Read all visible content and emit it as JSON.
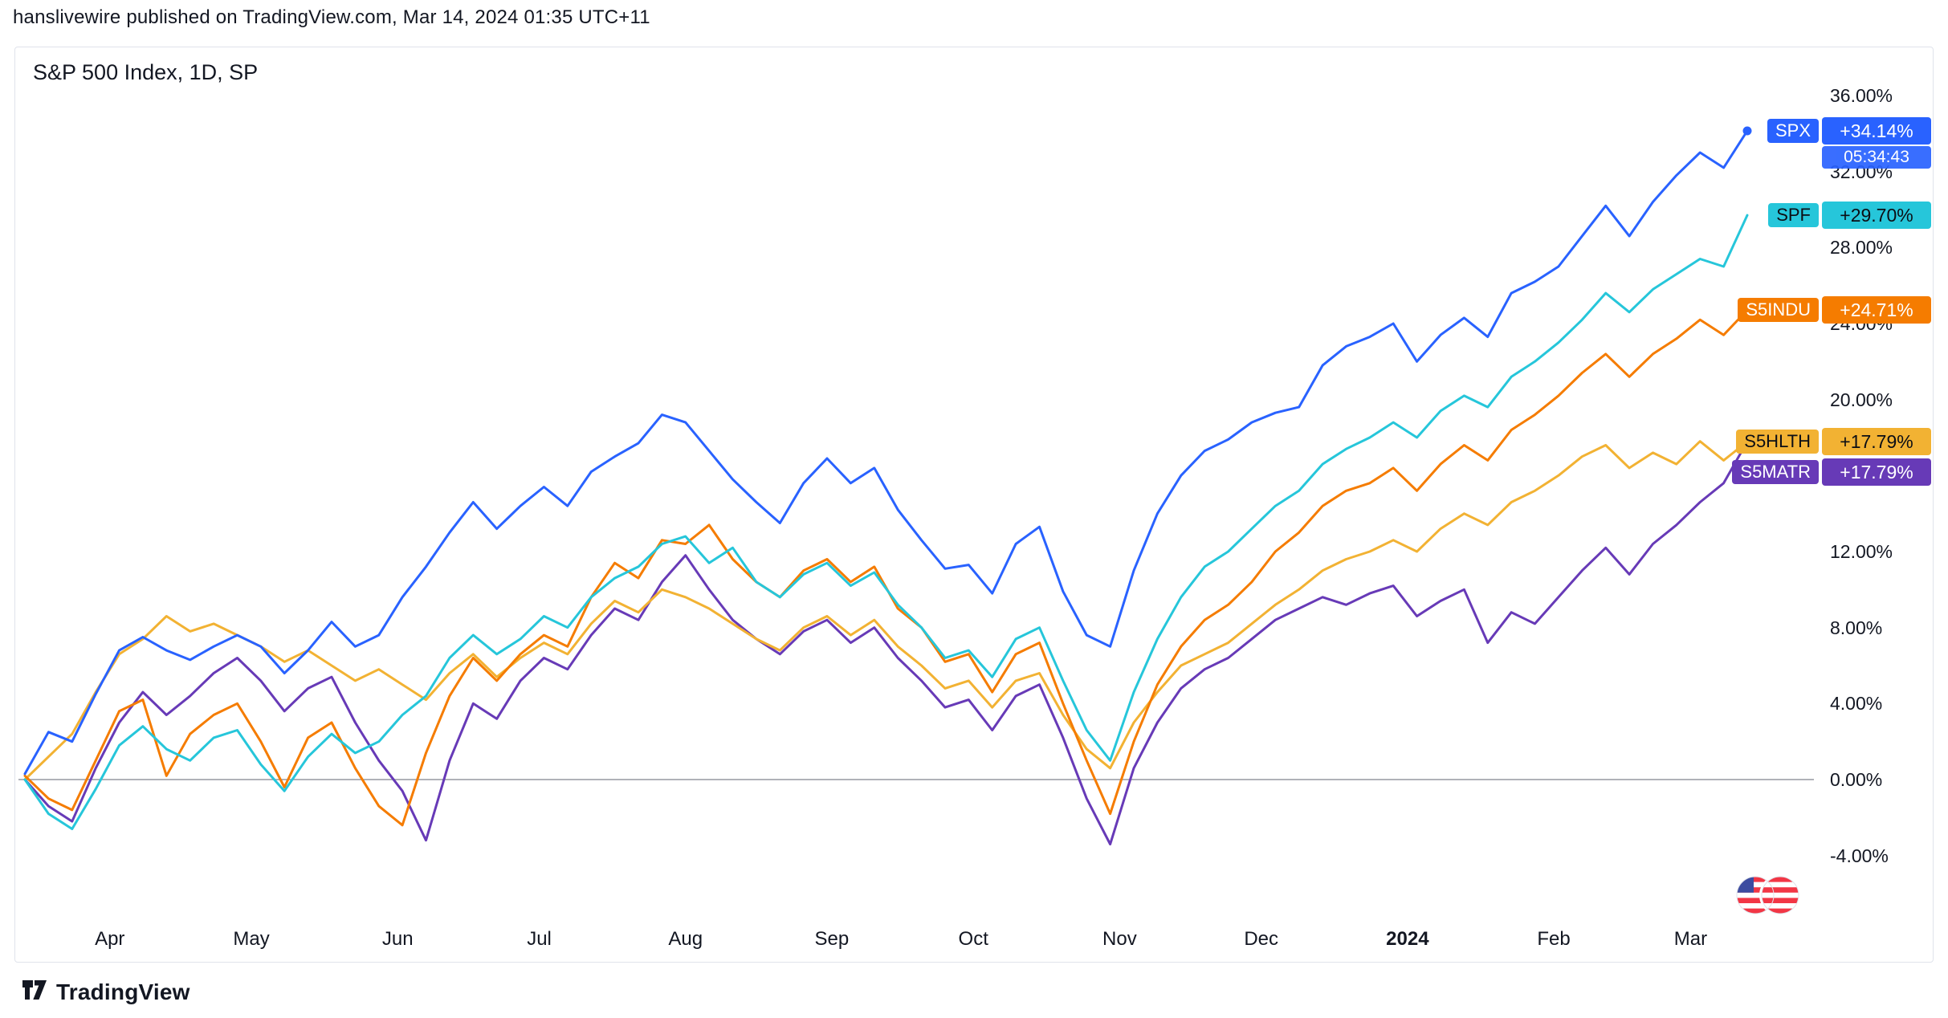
{
  "header": {
    "published_line": "hanslivewire published on TradingView.com, Mar 14, 2024 01:35 UTC+11"
  },
  "chart": {
    "title": "S&P 500 Index, 1D, SP",
    "colors": {
      "zero_line": "#9598A1",
      "panel_border": "#E0E3EB",
      "background": "#FFFFFF"
    }
  },
  "badges": [
    {
      "ticker": "SPX",
      "value": "+34.14%",
      "countdown": "05:34:43",
      "pct": 34.14,
      "color": "#2962FF",
      "text_color": "#FFFFFF"
    },
    {
      "ticker": "SPF",
      "value": "+29.70%",
      "pct": 29.7,
      "color": "#26C6DA",
      "text_color": "#0C0E15"
    },
    {
      "ticker": "S5INDU",
      "value": "+24.71%",
      "pct": 24.71,
      "color": "#F57C00",
      "text_color": "#FFFFFF"
    },
    {
      "ticker": "S5HLTH",
      "value": "+17.79%",
      "pct": 17.79,
      "color": "#F2B233",
      "text_color": "#0C0E15"
    },
    {
      "ticker": "S5MATR",
      "value": "+17.79%",
      "pct": 17.79,
      "color": "#673AB7",
      "text_color": "#FFFFFF"
    }
  ],
  "chart_data": {
    "type": "line",
    "title": "S&P 500 Index, 1D, SP",
    "x_unit": "days (0 = mid-March 2023, 365 = mid-March 2024)",
    "ylabel": "percent change",
    "ylim": [
      -9.5,
      38.5
    ],
    "grid": "zero-line-only",
    "legend_position": "right-price-labels",
    "x": [
      0,
      5,
      10,
      15,
      20,
      25,
      30,
      35,
      40,
      45,
      50,
      55,
      60,
      65,
      70,
      75,
      80,
      85,
      90,
      95,
      100,
      105,
      110,
      115,
      120,
      125,
      130,
      135,
      140,
      145,
      150,
      155,
      160,
      165,
      170,
      175,
      180,
      185,
      190,
      195,
      200,
      205,
      210,
      215,
      220,
      225,
      230,
      235,
      240,
      245,
      250,
      255,
      260,
      265,
      270,
      275,
      280,
      285,
      290,
      295,
      300,
      305,
      310,
      315,
      320,
      325,
      330,
      335,
      340,
      345,
      350,
      355,
      360,
      365
    ],
    "series": [
      {
        "name": "SPX",
        "color": "#2962FF",
        "final_change": "+34.14%",
        "end_dot": true,
        "values": [
          0.3,
          2.5,
          2.0,
          4.5,
          6.8,
          7.5,
          6.8,
          6.3,
          7.0,
          7.6,
          7.0,
          5.6,
          6.8,
          8.3,
          7.0,
          7.6,
          9.6,
          11.2,
          13.0,
          14.6,
          13.2,
          14.4,
          15.4,
          14.4,
          16.2,
          17.0,
          17.7,
          19.2,
          18.8,
          17.3,
          15.8,
          14.6,
          13.5,
          15.6,
          16.9,
          15.6,
          16.4,
          14.2,
          12.6,
          11.1,
          11.3,
          9.8,
          12.4,
          13.3,
          9.9,
          7.6,
          7.0,
          11.0,
          14.0,
          16.0,
          17.3,
          17.9,
          18.8,
          19.3,
          19.6,
          21.8,
          22.8,
          23.3,
          24.0,
          22.0,
          23.4,
          24.3,
          23.3,
          25.6,
          26.2,
          27.0,
          28.6,
          30.2,
          28.6,
          30.4,
          31.8,
          33.0,
          32.2,
          34.14
        ]
      },
      {
        "name": "SPF",
        "color": "#26C6DA",
        "final_change": "+29.70%",
        "values": [
          0.0,
          -1.8,
          -2.6,
          -0.5,
          1.8,
          2.8,
          1.6,
          1.0,
          2.2,
          2.6,
          0.8,
          -0.6,
          1.2,
          2.4,
          1.4,
          2.0,
          3.4,
          4.4,
          6.4,
          7.6,
          6.6,
          7.4,
          8.6,
          8.0,
          9.6,
          10.6,
          11.2,
          12.4,
          12.8,
          11.4,
          12.2,
          10.4,
          9.6,
          10.8,
          11.4,
          10.2,
          10.9,
          9.2,
          8.0,
          6.4,
          6.8,
          5.4,
          7.4,
          8.0,
          5.2,
          2.6,
          1.0,
          4.6,
          7.4,
          9.6,
          11.2,
          12.0,
          13.2,
          14.4,
          15.2,
          16.6,
          17.4,
          18.0,
          18.8,
          18.0,
          19.4,
          20.2,
          19.6,
          21.2,
          22.0,
          23.0,
          24.2,
          25.6,
          24.6,
          25.8,
          26.6,
          27.4,
          27.0,
          29.7
        ]
      },
      {
        "name": "S5INDU",
        "color": "#F57C00",
        "final_change": "+24.71%",
        "values": [
          0.2,
          -1.0,
          -1.6,
          1.0,
          3.6,
          4.2,
          0.2,
          2.4,
          3.4,
          4.0,
          2.0,
          -0.4,
          2.2,
          3.0,
          0.6,
          -1.4,
          -2.4,
          1.4,
          4.4,
          6.4,
          5.2,
          6.6,
          7.6,
          7.0,
          9.6,
          11.4,
          10.6,
          12.6,
          12.4,
          13.4,
          11.6,
          10.4,
          9.6,
          11.0,
          11.6,
          10.4,
          11.2,
          9.0,
          8.0,
          6.2,
          6.6,
          4.6,
          6.6,
          7.2,
          4.0,
          1.0,
          -1.8,
          2.0,
          5.0,
          7.0,
          8.4,
          9.2,
          10.4,
          12.0,
          13.0,
          14.4,
          15.2,
          15.6,
          16.4,
          15.2,
          16.6,
          17.6,
          16.8,
          18.4,
          19.2,
          20.2,
          21.4,
          22.4,
          21.2,
          22.4,
          23.2,
          24.2,
          23.4,
          24.71
        ]
      },
      {
        "name": "S5HLTH",
        "color": "#F2B233",
        "final_change": "+17.79%",
        "values": [
          0.0,
          1.2,
          2.4,
          4.6,
          6.6,
          7.4,
          8.6,
          7.8,
          8.2,
          7.6,
          7.0,
          6.2,
          6.8,
          6.0,
          5.2,
          5.8,
          5.0,
          4.2,
          5.6,
          6.6,
          5.4,
          6.4,
          7.2,
          6.6,
          8.2,
          9.4,
          8.8,
          10.0,
          9.6,
          9.0,
          8.2,
          7.4,
          6.8,
          8.0,
          8.6,
          7.6,
          8.4,
          7.0,
          6.0,
          4.8,
          5.2,
          3.8,
          5.2,
          5.6,
          3.4,
          1.6,
          0.6,
          3.0,
          4.6,
          6.0,
          6.6,
          7.2,
          8.2,
          9.2,
          10.0,
          11.0,
          11.6,
          12.0,
          12.6,
          12.0,
          13.2,
          14.0,
          13.4,
          14.6,
          15.2,
          16.0,
          17.0,
          17.6,
          16.4,
          17.2,
          16.6,
          17.8,
          16.8,
          17.79
        ]
      },
      {
        "name": "S5MATR",
        "color": "#673AB7",
        "final_change": "+17.79%",
        "values": [
          0.0,
          -1.4,
          -2.2,
          0.6,
          3.0,
          4.6,
          3.4,
          4.4,
          5.6,
          6.4,
          5.2,
          3.6,
          4.8,
          5.4,
          3.0,
          1.0,
          -0.6,
          -3.2,
          1.0,
          4.0,
          3.2,
          5.2,
          6.4,
          5.8,
          7.6,
          9.0,
          8.4,
          10.4,
          11.8,
          10.0,
          8.4,
          7.4,
          6.6,
          7.8,
          8.4,
          7.2,
          8.0,
          6.4,
          5.2,
          3.8,
          4.2,
          2.6,
          4.4,
          5.0,
          2.2,
          -1.0,
          -3.4,
          0.6,
          3.0,
          4.8,
          5.8,
          6.4,
          7.4,
          8.4,
          9.0,
          9.6,
          9.2,
          9.8,
          10.2,
          8.6,
          9.4,
          10.0,
          7.2,
          8.8,
          8.2,
          9.6,
          11.0,
          12.2,
          10.8,
          12.4,
          13.4,
          14.6,
          15.6,
          17.79
        ]
      }
    ],
    "yticks": [
      36,
      32,
      28,
      24,
      20,
      16,
      12,
      8,
      4,
      0,
      -4
    ],
    "ytick_labels": [
      "36.00%",
      "32.00%",
      "28.00%",
      "24.00%",
      "20.00%",
      "16.00%",
      "12.00%",
      "8.00%",
      "4.00%",
      "0.00%",
      "-4.00%"
    ],
    "xticks": [
      {
        "label": "Apr",
        "day": 18
      },
      {
        "label": "May",
        "day": 48
      },
      {
        "label": "Jun",
        "day": 79
      },
      {
        "label": "Jul",
        "day": 109
      },
      {
        "label": "Aug",
        "day": 140
      },
      {
        "label": "Sep",
        "day": 171
      },
      {
        "label": "Oct",
        "day": 201
      },
      {
        "label": "Nov",
        "day": 232
      },
      {
        "label": "Dec",
        "day": 262
      },
      {
        "label": "2024",
        "day": 293,
        "bold": true
      },
      {
        "label": "Feb",
        "day": 324
      },
      {
        "label": "Mar",
        "day": 353
      }
    ]
  },
  "footer": {
    "brand": "TradingView"
  },
  "icons": {
    "flag": "us-flag-icon",
    "brand_logo": "tradingview-logo-icon"
  }
}
